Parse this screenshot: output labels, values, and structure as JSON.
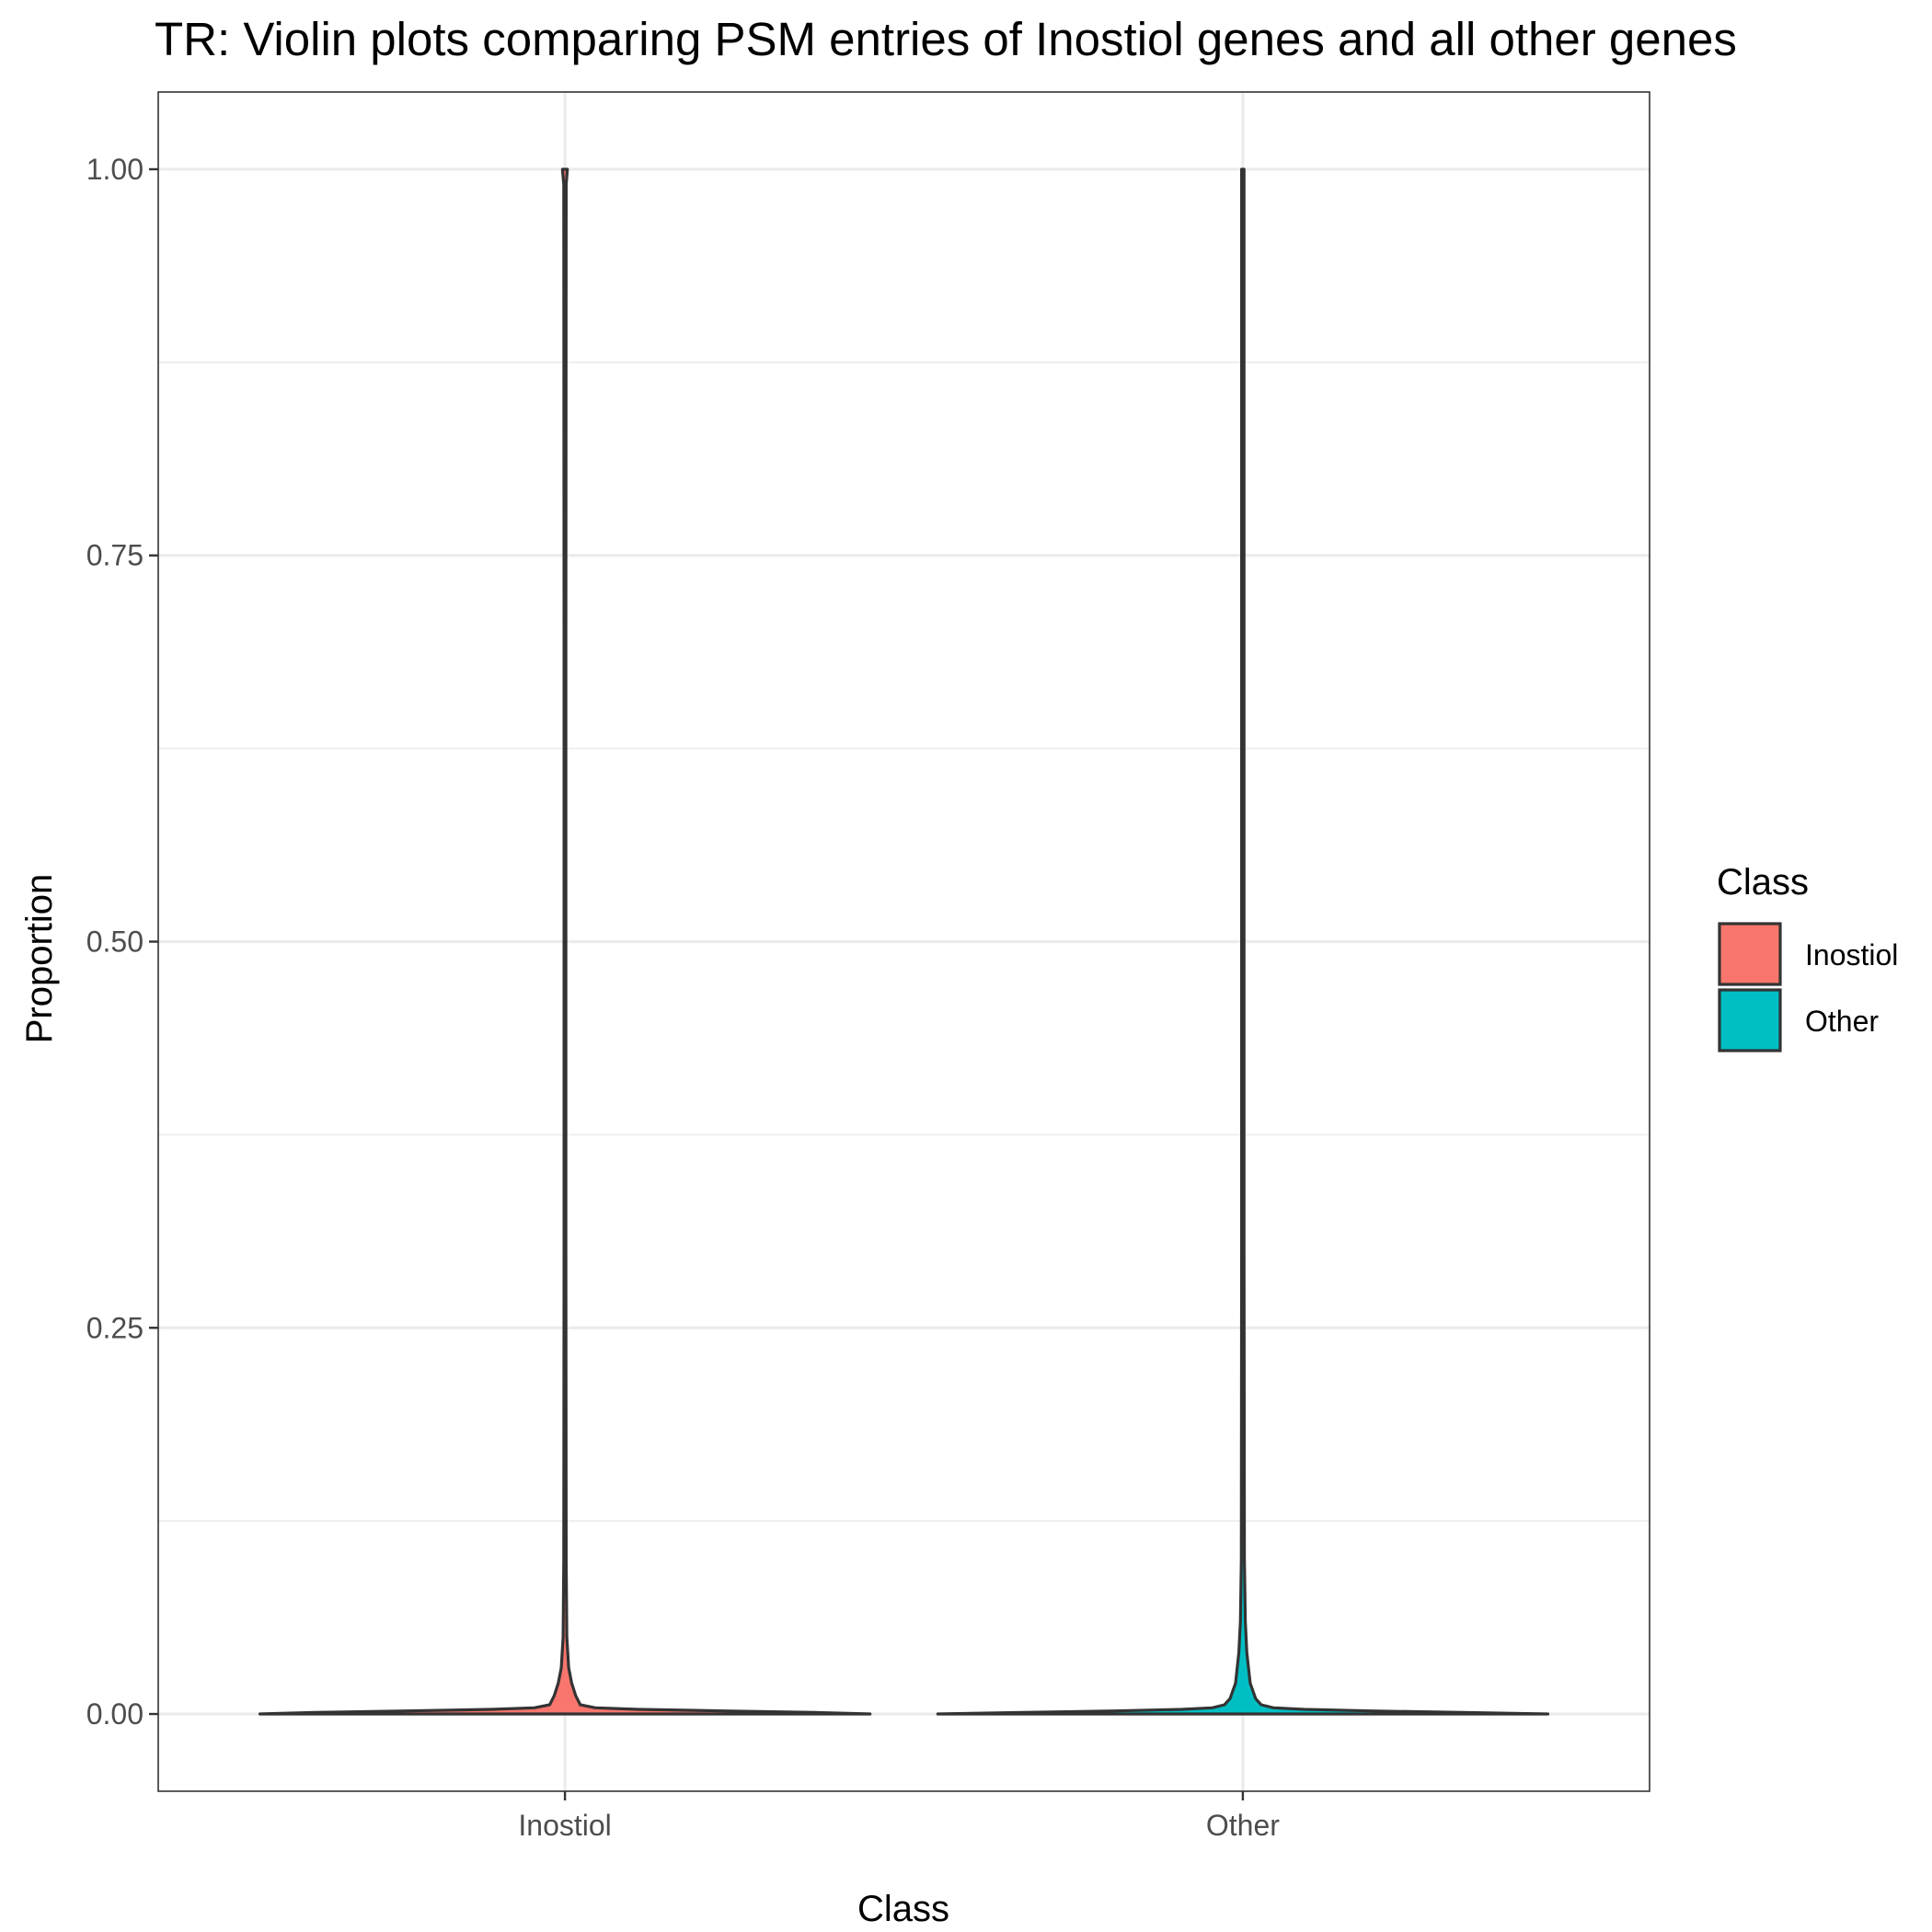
{
  "chart_data": {
    "type": "violin",
    "title": "TR: Violin plots comparing PSM entries of Inostiol genes and all other genes",
    "xlabel": "Class",
    "ylabel": "Proportion",
    "categories": [
      "Inostiol",
      "Other"
    ],
    "ylim": [
      -0.05,
      1.05
    ],
    "yticks": [
      0.0,
      0.25,
      0.5,
      0.75,
      1.0
    ],
    "ytick_labels": [
      "0.00",
      "0.25",
      "0.50",
      "0.75",
      "1.00"
    ],
    "grid": true,
    "legend": {
      "title": "Class",
      "position": "right",
      "entries": [
        {
          "label": "Inostiol",
          "color": "#F8766D"
        },
        {
          "label": "Other",
          "color": "#00BFC4"
        }
      ]
    },
    "series": [
      {
        "category": "Inostiol",
        "color": "#F8766D",
        "y_range": [
          0.0,
          1.0
        ],
        "density_profile": [
          {
            "y": 0.0,
            "w": 1.0
          },
          {
            "y": 0.001,
            "w": 0.82
          },
          {
            "y": 0.002,
            "w": 0.52
          },
          {
            "y": 0.003,
            "w": 0.24
          },
          {
            "y": 0.004,
            "w": 0.1
          },
          {
            "y": 0.006,
            "w": 0.05
          },
          {
            "y": 0.012,
            "w": 0.035
          },
          {
            "y": 0.02,
            "w": 0.022
          },
          {
            "y": 0.03,
            "w": 0.012
          },
          {
            "y": 0.05,
            "w": 0.006
          },
          {
            "y": 0.1,
            "w": 0.004
          },
          {
            "y": 0.3,
            "w": 0.003
          },
          {
            "y": 0.7,
            "w": 0.003
          },
          {
            "y": 0.99,
            "w": 0.004
          },
          {
            "y": 1.0,
            "w": 0.008
          }
        ]
      },
      {
        "category": "Other",
        "color": "#00BFC4",
        "y_range": [
          0.0,
          1.0
        ],
        "density_profile": [
          {
            "y": 0.0,
            "w": 1.0
          },
          {
            "y": 0.001,
            "w": 0.72
          },
          {
            "y": 0.002,
            "w": 0.42
          },
          {
            "y": 0.003,
            "w": 0.2
          },
          {
            "y": 0.004,
            "w": 0.1
          },
          {
            "y": 0.006,
            "w": 0.06
          },
          {
            "y": 0.01,
            "w": 0.042
          },
          {
            "y": 0.02,
            "w": 0.024
          },
          {
            "y": 0.04,
            "w": 0.013
          },
          {
            "y": 0.06,
            "w": 0.008
          },
          {
            "y": 0.1,
            "w": 0.005
          },
          {
            "y": 0.3,
            "w": 0.004
          },
          {
            "y": 0.7,
            "w": 0.004
          },
          {
            "y": 1.0,
            "w": 0.004
          }
        ]
      }
    ]
  }
}
